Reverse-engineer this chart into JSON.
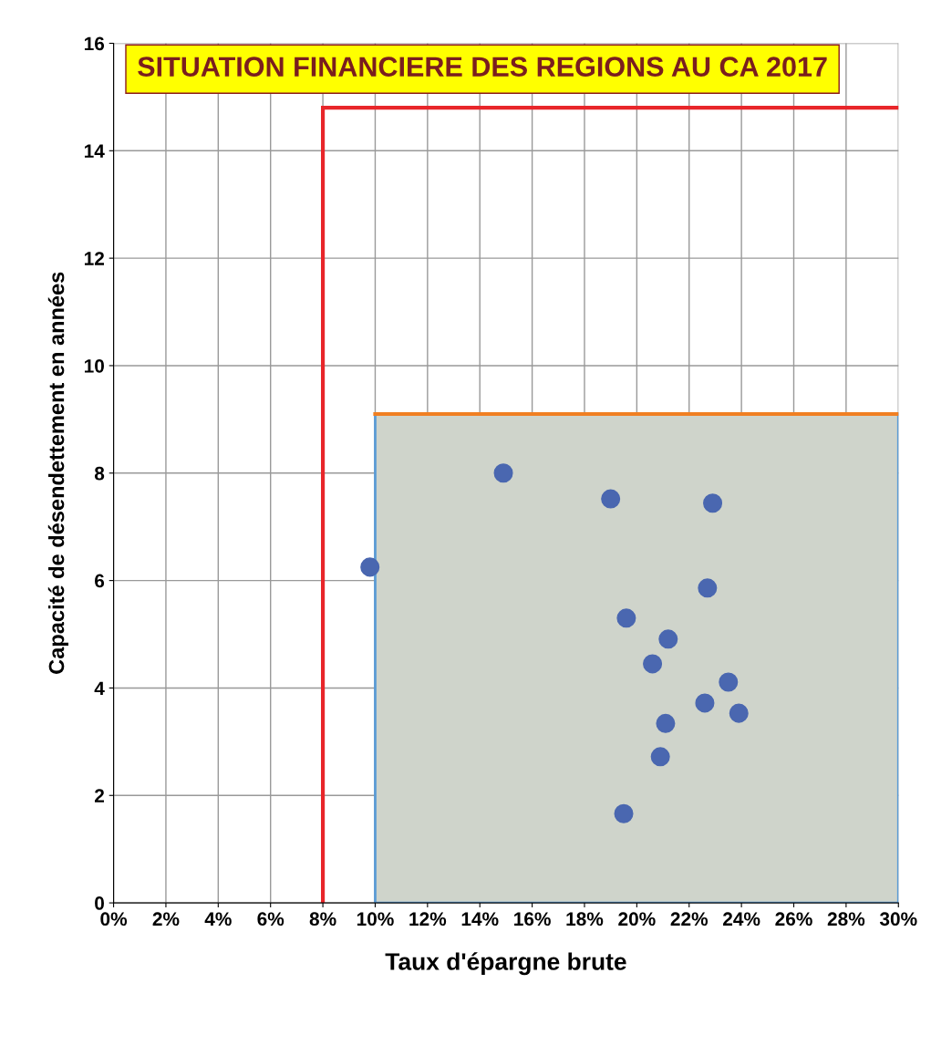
{
  "chart_data": {
    "type": "scatter",
    "title": "SITUATION FINANCIERE DES REGIONS AU CA 2017",
    "xlabel": "Taux d'épargne brute",
    "ylabel": "Capacité de désendettement en années",
    "x": [
      9.8,
      14.9,
      19.0,
      22.9,
      22.7,
      19.6,
      21.2,
      20.6,
      23.5,
      22.6,
      23.9,
      21.1,
      20.9,
      19.5
    ],
    "series": [
      {
        "color": "#4a67b0",
        "values": [
          6.25,
          8.0,
          7.52,
          7.44,
          5.86,
          5.3,
          4.91,
          4.45,
          4.11,
          3.72,
          3.53,
          3.34,
          2.72,
          1.66
        ]
      }
    ],
    "marker": "circle",
    "grid": true,
    "xlim": [
      0,
      30
    ],
    "xticks": [
      {
        "value": 0,
        "label": "0%"
      },
      {
        "value": 2,
        "label": "2%"
      },
      {
        "value": 4,
        "label": "4%"
      },
      {
        "value": 6,
        "label": "6%"
      },
      {
        "value": 8,
        "label": "8%"
      },
      {
        "value": 10,
        "label": "10%"
      },
      {
        "value": 12,
        "label": "12%"
      },
      {
        "value": 14,
        "label": "14%"
      },
      {
        "value": 16,
        "label": "16%"
      },
      {
        "value": 18,
        "label": "18%"
      },
      {
        "value": 20,
        "label": "20%"
      },
      {
        "value": 22,
        "label": "22%"
      },
      {
        "value": 24,
        "label": "24%"
      },
      {
        "value": 26,
        "label": "26%"
      },
      {
        "value": 28,
        "label": "28%"
      },
      {
        "value": 30,
        "label": "30%"
      }
    ],
    "ylim": [
      0,
      16
    ],
    "yticks": [
      0,
      2,
      4,
      6,
      8,
      10,
      12,
      14,
      16
    ],
    "ref_lines": [
      {
        "axis": "x",
        "value": 8,
        "color": "#e8262a"
      },
      {
        "axis": "y",
        "value": 14.8,
        "color": "#e8262a"
      },
      {
        "axis": "y",
        "value": 9.1,
        "color": "#f07f22"
      }
    ],
    "bands": [
      {
        "axis": "x",
        "from": 10,
        "to": 30,
        "color": "#cfd4cb"
      }
    ]
  }
}
